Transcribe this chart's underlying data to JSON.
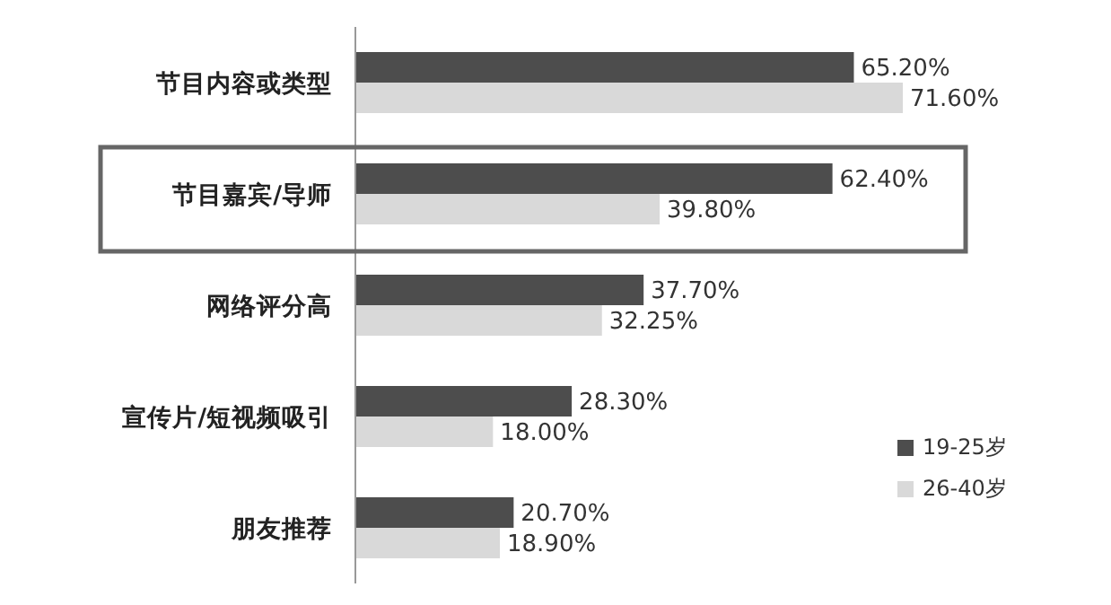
{
  "chart_data": {
    "type": "bar",
    "orientation": "horizontal",
    "categories": [
      "节目内容或类型",
      "节目嘉宾/导师",
      "网络评分高",
      "宣传片/短视频吸引",
      "朋友推荐"
    ],
    "series": [
      {
        "name": "19-25岁",
        "color": "#4d4d4d",
        "values": [
          65.2,
          62.4,
          37.7,
          28.3,
          20.7
        ],
        "value_labels": [
          "65.20%",
          "62.40%",
          "37.70%",
          "28.30%",
          "20.70%"
        ]
      },
      {
        "name": "26-40岁",
        "color": "#d9d9d9",
        "values": [
          71.6,
          39.8,
          32.25,
          18.0,
          18.9
        ],
        "value_labels": [
          "71.60%",
          "39.80%",
          "32.25%",
          "18.00%",
          "18.90%"
        ]
      }
    ],
    "legend": "right"
  }
}
